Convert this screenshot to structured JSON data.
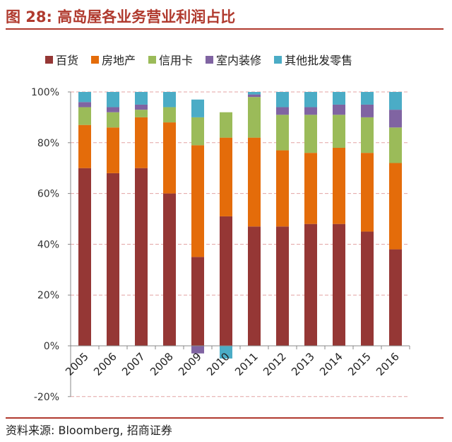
{
  "figure": {
    "title": "图 28:  高岛屋各业务营业利润占比",
    "source": "资料来源:  Bloomberg,  招商证券"
  },
  "chart_data": {
    "type": "bar",
    "stacked": true,
    "categories": [
      "2005",
      "2006",
      "2007",
      "2008",
      "2009",
      "2010",
      "2011",
      "2012",
      "2013",
      "2014",
      "2015",
      "2016"
    ],
    "ylim": [
      -0.2,
      1.0
    ],
    "yticks": [
      "100%",
      "80%",
      "60%",
      "40%",
      "20%",
      "0%",
      "-20%"
    ],
    "grid": true,
    "legend_position": "top",
    "series": [
      {
        "name": "百货",
        "color": "#953735",
        "values": [
          0.7,
          0.68,
          0.7,
          0.6,
          0.35,
          0.51,
          0.47,
          0.47,
          0.48,
          0.48,
          0.45,
          0.38
        ]
      },
      {
        "name": "房地产",
        "color": "#e46c0a",
        "values": [
          0.17,
          0.18,
          0.2,
          0.28,
          0.44,
          0.31,
          0.35,
          0.3,
          0.28,
          0.3,
          0.31,
          0.34
        ]
      },
      {
        "name": "信用卡",
        "color": "#9bbb59",
        "values": [
          0.07,
          0.06,
          0.03,
          0.06,
          0.11,
          0.1,
          0.16,
          0.14,
          0.15,
          0.13,
          0.14,
          0.14
        ]
      },
      {
        "name": "室内装修",
        "color": "#8064a2",
        "values": [
          0.02,
          0.02,
          0.02,
          0.0,
          -0.03,
          0.0,
          0.01,
          0.03,
          0.03,
          0.04,
          0.05,
          0.07
        ]
      },
      {
        "name": "其他批发零售",
        "color": "#4bacc6",
        "values": [
          0.04,
          0.06,
          0.05,
          0.06,
          0.07,
          -0.05,
          0.01,
          0.06,
          0.06,
          0.05,
          0.05,
          0.07
        ]
      }
    ]
  }
}
